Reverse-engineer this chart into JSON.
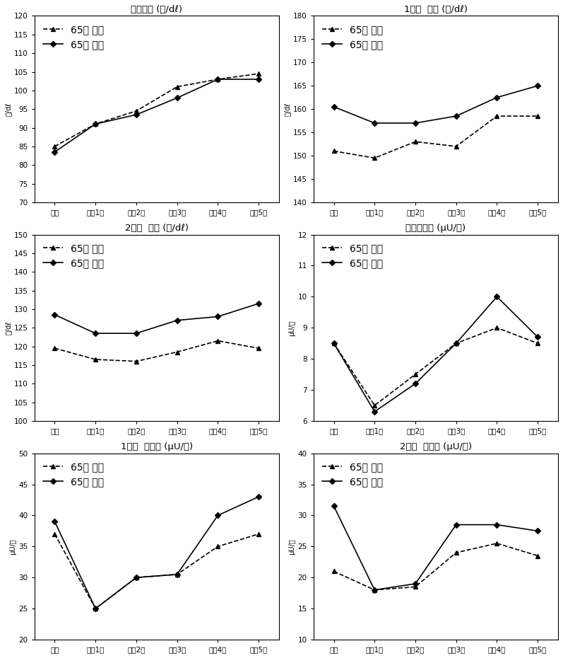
{
  "x_labels": [
    "기초",
    "추적1기",
    "추적2기",
    "추적3기",
    "추적4기",
    "추적5기"
  ],
  "plots": [
    {
      "title": "공복혈당 (㎎/dℓ)",
      "ylabel": "㎎/dℓ",
      "ylim": [
        70,
        120
      ],
      "yticks": [
        70,
        75,
        80,
        85,
        90,
        95,
        100,
        105,
        110,
        115,
        120
      ],
      "series_under65": [
        85.0,
        91.0,
        94.5,
        101.0,
        103.0,
        104.5
      ],
      "series_over65": [
        83.5,
        91.0,
        93.5,
        98.0,
        103.0,
        103.0
      ]
    },
    {
      "title": "1시간  혈당 (㎎/dℓ)",
      "ylabel": "㎎/dℓ",
      "ylim": [
        140,
        180
      ],
      "yticks": [
        140,
        145,
        150,
        155,
        160,
        165,
        170,
        175,
        180
      ],
      "series_under65": [
        151.0,
        149.5,
        153.0,
        152.0,
        158.5,
        158.5
      ],
      "series_over65": [
        160.5,
        157.0,
        157.0,
        158.5,
        162.5,
        165.0
      ]
    },
    {
      "title": "2시간  혈당 (㎎/dℓ)",
      "ylabel": "㎎/dℓ",
      "ylim": [
        100,
        150
      ],
      "yticks": [
        100,
        105,
        110,
        115,
        120,
        125,
        130,
        135,
        140,
        145,
        150
      ],
      "series_under65": [
        119.5,
        116.5,
        116.0,
        118.5,
        121.5,
        119.5
      ],
      "series_over65": [
        128.5,
        123.5,
        123.5,
        127.0,
        128.0,
        131.5
      ]
    },
    {
      "title": "공복인슐린 (μU/㎖)",
      "ylabel": "μU/㎖",
      "ylim": [
        6,
        12
      ],
      "yticks": [
        6,
        7,
        8,
        9,
        10,
        11,
        12
      ],
      "series_under65": [
        8.5,
        6.5,
        7.5,
        8.5,
        9.0,
        8.5
      ],
      "series_over65": [
        8.5,
        6.3,
        7.2,
        8.5,
        10.0,
        8.7
      ]
    },
    {
      "title": "1시간  인슐린 (μU/㎖)",
      "ylabel": "μU/㎖",
      "ylim": [
        20,
        50
      ],
      "yticks": [
        20,
        25,
        30,
        35,
        40,
        45,
        50
      ],
      "series_under65": [
        37.0,
        25.0,
        30.0,
        30.5,
        35.0,
        37.0
      ],
      "series_over65": [
        39.0,
        25.0,
        30.0,
        30.5,
        40.0,
        43.0
      ]
    },
    {
      "title": "2시간  인슐린 (μU/㎖)",
      "ylabel": "μU/㎖",
      "ylim": [
        10,
        40
      ],
      "yticks": [
        10,
        15,
        20,
        25,
        30,
        35,
        40
      ],
      "series_under65": [
        21.0,
        18.0,
        18.5,
        24.0,
        25.5,
        23.5
      ],
      "series_over65": [
        31.5,
        18.0,
        19.0,
        28.5,
        28.5,
        27.5
      ]
    }
  ],
  "legend_under65": "65세 미만",
  "legend_over65": "65세 이상",
  "bg_color": "#ffffff",
  "line_color": "#000000"
}
